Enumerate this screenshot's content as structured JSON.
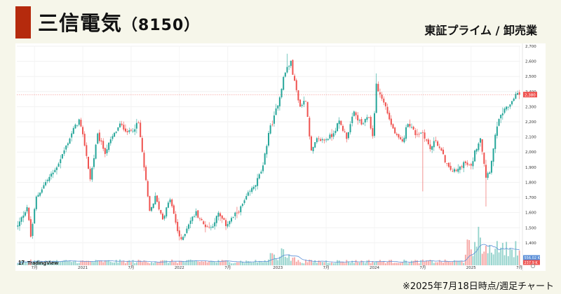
{
  "header": {
    "company": "三信電気",
    "code": "（8150）",
    "market": "東証プライム / 卸売業",
    "accent_color": "#b52a0d"
  },
  "footnote": "※2025年7月18日時点/週足チャート",
  "branding": {
    "logo_text": "TradingView",
    "logo_mark": "17"
  },
  "chart_data": {
    "type": "candlestick",
    "timeframe": "weekly",
    "ylim": [
      1330,
      2700
    ],
    "y_ticks": [
      1400,
      1500,
      1600,
      1700,
      1800,
      1900,
      2000,
      2100,
      2200,
      2300,
      2400,
      2500,
      2600,
      2700
    ],
    "y_tick_labels": [
      "1,400",
      "1,500",
      "1,600",
      "1,700",
      "1,800",
      "1,900",
      "2,000",
      "2,100",
      "2,200",
      "2,300",
      "2,400",
      "2,500",
      "2,600",
      "2,700"
    ],
    "x_tick_labels": [
      {
        "week": 9,
        "label": "7月"
      },
      {
        "week": 35,
        "label": "2021"
      },
      {
        "week": 61,
        "label": "7月"
      },
      {
        "week": 87,
        "label": "2022"
      },
      {
        "week": 113,
        "label": "7月"
      },
      {
        "week": 140,
        "label": "2023"
      },
      {
        "week": 166,
        "label": "7月"
      },
      {
        "week": 192,
        "label": "2024"
      },
      {
        "week": 218,
        "label": "7月"
      },
      {
        "week": 244,
        "label": "2025"
      },
      {
        "week": 270,
        "label": "7月"
      }
    ],
    "anchors": [
      [
        0,
        1510
      ],
      [
        5,
        1640
      ],
      [
        7,
        1440
      ],
      [
        10,
        1700
      ],
      [
        15,
        1800
      ],
      [
        20,
        1880
      ],
      [
        25,
        2010
      ],
      [
        30,
        2150
      ],
      [
        33,
        2210
      ],
      [
        36,
        2050
      ],
      [
        39,
        1820
      ],
      [
        43,
        2110
      ],
      [
        47,
        2000
      ],
      [
        51,
        2100
      ],
      [
        55,
        2180
      ],
      [
        60,
        2130
      ],
      [
        65,
        2190
      ],
      [
        68,
        1900
      ],
      [
        71,
        1600
      ],
      [
        74,
        1700
      ],
      [
        78,
        1560
      ],
      [
        82,
        1690
      ],
      [
        86,
        1480
      ],
      [
        88,
        1410
      ],
      [
        92,
        1530
      ],
      [
        96,
        1600
      ],
      [
        100,
        1520
      ],
      [
        104,
        1500
      ],
      [
        108,
        1590
      ],
      [
        112,
        1520
      ],
      [
        116,
        1570
      ],
      [
        120,
        1630
      ],
      [
        124,
        1720
      ],
      [
        128,
        1790
      ],
      [
        132,
        1900
      ],
      [
        135,
        2130
      ],
      [
        138,
        2230
      ],
      [
        141,
        2370
      ],
      [
        143,
        2490
      ],
      [
        145,
        2560
      ],
      [
        147,
        2590
      ],
      [
        149,
        2460
      ],
      [
        152,
        2300
      ],
      [
        155,
        2350
      ],
      [
        158,
        2000
      ],
      [
        161,
        2080
      ],
      [
        165,
        2080
      ],
      [
        169,
        2110
      ],
      [
        173,
        2200
      ],
      [
        177,
        2100
      ],
      [
        181,
        2260
      ],
      [
        185,
        2180
      ],
      [
        189,
        2230
      ],
      [
        191,
        2100
      ],
      [
        193,
        2440
      ],
      [
        195,
        2380
      ],
      [
        198,
        2300
      ],
      [
        201,
        2180
      ],
      [
        204,
        2100
      ],
      [
        207,
        2060
      ],
      [
        210,
        2200
      ],
      [
        214,
        2120
      ],
      [
        218,
        2130
      ],
      [
        222,
        2020
      ],
      [
        225,
        2080
      ],
      [
        228,
        2000
      ],
      [
        232,
        1890
      ],
      [
        236,
        1870
      ],
      [
        240,
        1930
      ],
      [
        244,
        1900
      ],
      [
        246,
        2000
      ],
      [
        249,
        2100
      ],
      [
        252,
        1840
      ],
      [
        254,
        1880
      ],
      [
        256,
        2020
      ],
      [
        258,
        2180
      ],
      [
        261,
        2260
      ],
      [
        264,
        2300
      ],
      [
        268,
        2380
      ],
      [
        270,
        2380
      ]
    ],
    "last_price": 2380,
    "last_price_label": "2,380",
    "volume_labels": [
      "556.02 K",
      "237.9 K"
    ],
    "colors": {
      "up": "#26a69a",
      "down": "#ef5350",
      "volume_up": "#94d3cc",
      "volume_down": "#f6a6a4",
      "ma_line": "#5b8fd8",
      "last_price": "#ef5350"
    }
  }
}
